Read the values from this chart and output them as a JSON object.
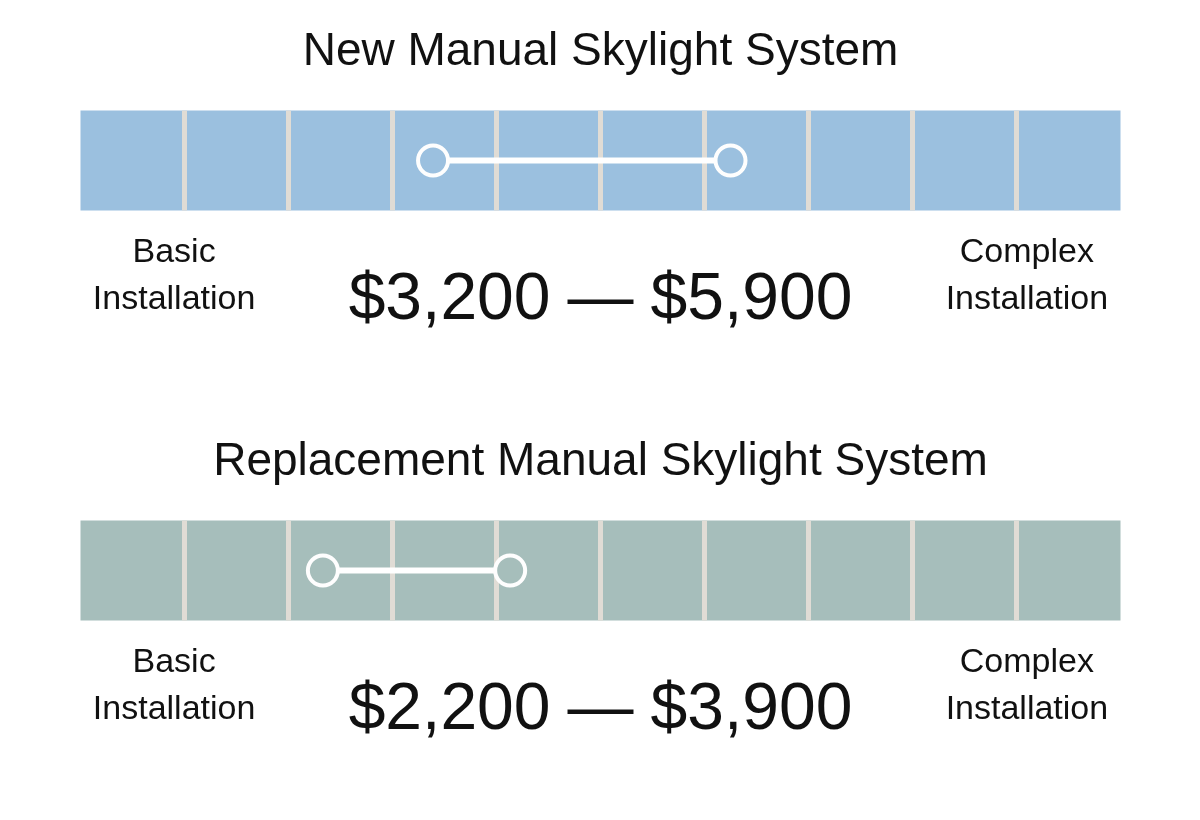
{
  "chart_data": [
    {
      "type": "other",
      "title": "New Manual Skylight System",
      "values": [
        3200,
        5900
      ],
      "value_labels": [
        "$3,200",
        "$5,900"
      ],
      "color": "#9bc0df",
      "annotations": [
        "Basic\nInstallation",
        "Complex\nInstallation",
        "—"
      ]
    },
    {
      "type": "other",
      "title": "Replacement Manual Skylight System",
      "values": [
        2200,
        3900
      ],
      "value_labels": [
        "$2,200",
        "$3,900"
      ],
      "color": "#a6bebb",
      "annotations": [
        "Basic\nInstallation",
        "Complex\nInstallation",
        "—"
      ]
    }
  ]
}
